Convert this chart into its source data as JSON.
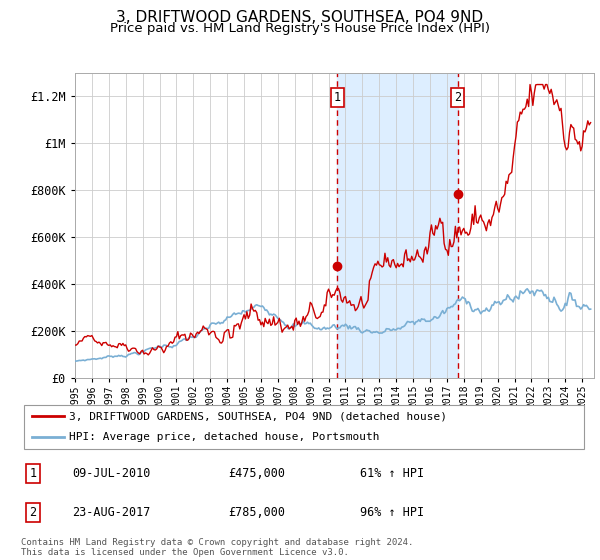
{
  "title": "3, DRIFTWOOD GARDENS, SOUTHSEA, PO4 9ND",
  "subtitle": "Price paid vs. HM Land Registry's House Price Index (HPI)",
  "title_fontsize": 11,
  "subtitle_fontsize": 9.5,
  "ylim": [
    0,
    1300000
  ],
  "yticks": [
    0,
    200000,
    400000,
    600000,
    800000,
    1000000,
    1200000
  ],
  "ytick_labels": [
    "£0",
    "£200K",
    "£400K",
    "£600K",
    "£800K",
    "£1M",
    "£1.2M"
  ],
  "xlim_start": 1995.0,
  "xlim_end": 2025.7,
  "sale1_year": 2010.52,
  "sale1_price": 475000,
  "sale1_label": "09-JUL-2010",
  "sale1_amount": "£475,000",
  "sale1_pct": "61% ↑ HPI",
  "sale2_year": 2017.64,
  "sale2_price": 785000,
  "sale2_label": "23-AUG-2017",
  "sale2_amount": "£785,000",
  "sale2_pct": "96% ↑ HPI",
  "legend_line1": "3, DRIFTWOOD GARDENS, SOUTHSEA, PO4 9ND (detached house)",
  "legend_line2": "HPI: Average price, detached house, Portsmouth",
  "footer": "Contains HM Land Registry data © Crown copyright and database right 2024.\nThis data is licensed under the Open Government Licence v3.0.",
  "red_color": "#cc0000",
  "blue_color": "#7aafd4",
  "shade_color": "#ddeeff",
  "grid_color": "#cccccc",
  "background_color": "#ffffff"
}
